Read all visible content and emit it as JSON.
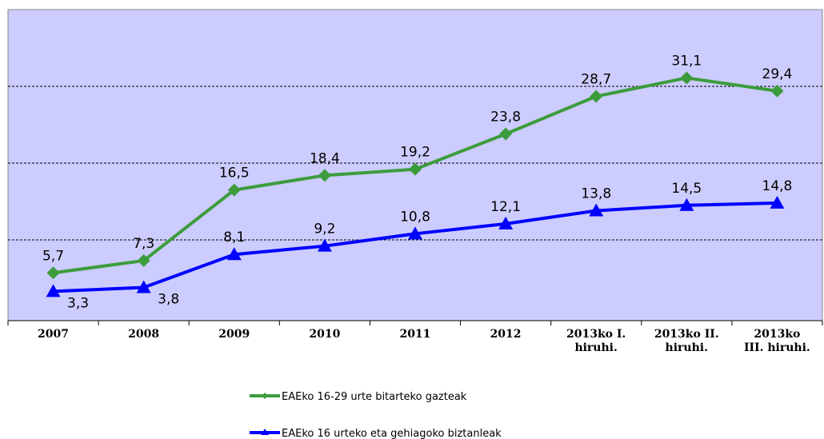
{
  "chart_data": {
    "type": "line",
    "categories": [
      "2007",
      "2008",
      "2009",
      "2010",
      "2011",
      "2012",
      "2013ko I.\nhiruhi.",
      "2013ko II.\nhiruhi.",
      "2013ko\nIII. hiruhi."
    ],
    "series": [
      {
        "name": "EAEko 16-29 urte bitarteko gazteak",
        "color": "#3c9c3c",
        "marker": "diamond",
        "values": [
          5.7,
          7.3,
          16.5,
          18.4,
          19.2,
          23.8,
          28.7,
          31.1,
          29.4
        ],
        "value_labels": [
          "5,7",
          "7,3",
          "16,5",
          "18,4",
          "19,2",
          "23,8",
          "28,7",
          "31,1",
          "29,4"
        ]
      },
      {
        "name": "EAEko 16 urteko eta gehiagoko biztanleak",
        "color": "#0000ff",
        "marker": "triangle",
        "values": [
          3.3,
          3.8,
          8.1,
          9.2,
          10.8,
          12.1,
          13.8,
          14.5,
          14.8
        ],
        "value_labels": [
          "3,3",
          "3,8",
          "8,1",
          "9,2",
          "10,8",
          "12,1",
          "13,8",
          "14,5",
          "14,8"
        ]
      }
    ],
    "ylim": [
      0,
      40
    ],
    "yticks": [
      10,
      20,
      30
    ],
    "grid": true,
    "legend": "bottom",
    "background": "#ccccff"
  }
}
